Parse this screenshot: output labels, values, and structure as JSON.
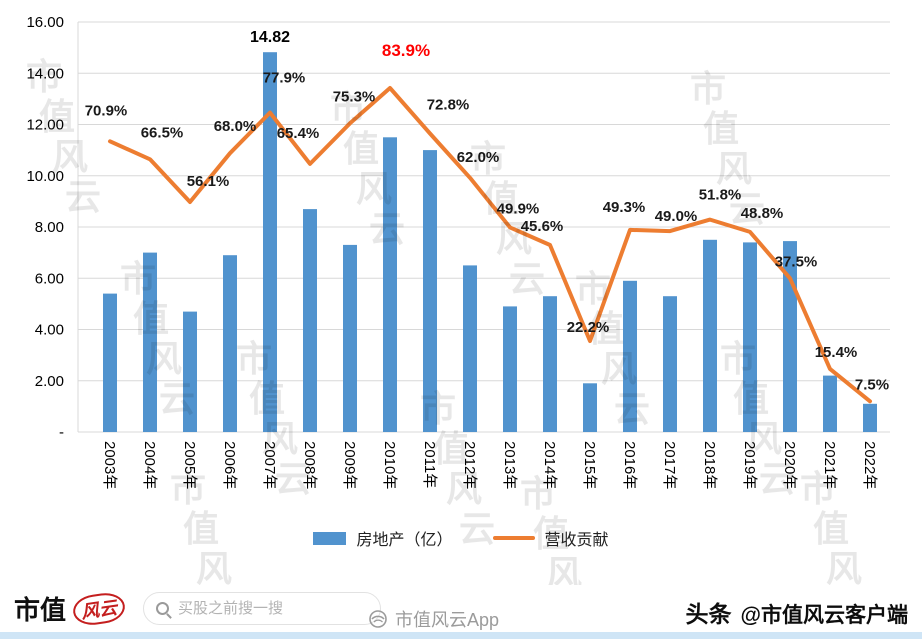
{
  "chart_data": {
    "type": "combo",
    "categories": [
      "2003年",
      "2004年",
      "2005年",
      "2006年",
      "2007年",
      "2008年",
      "2009年",
      "2010年",
      "2011年",
      "2012年",
      "2013年",
      "2014年",
      "2015年",
      "2016年",
      "2017年",
      "2018年",
      "2019年",
      "2020年",
      "2021年",
      "2022年"
    ],
    "series": [
      {
        "name": "房地产（亿）",
        "type": "bar",
        "color": "#5193CE",
        "values": [
          5.4,
          7.0,
          4.7,
          6.9,
          14.82,
          8.7,
          7.3,
          11.5,
          11.0,
          6.5,
          4.9,
          5.3,
          1.9,
          5.9,
          5.3,
          7.5,
          7.4,
          7.45,
          2.2,
          1.1
        ]
      },
      {
        "name": "营收贡献",
        "type": "line",
        "color": "#ED7D31",
        "unit": "%",
        "values": [
          70.9,
          66.5,
          56.1,
          68.0,
          77.9,
          65.4,
          75.3,
          83.9,
          72.8,
          62.0,
          49.9,
          45.6,
          22.2,
          49.3,
          49.0,
          51.8,
          48.8,
          37.5,
          15.4,
          7.5
        ]
      }
    ],
    "y_ticks": [
      "16.00",
      "14.00",
      "12.00",
      "10.00",
      "8.00",
      "6.00",
      "4.00",
      "2.00",
      "-"
    ],
    "y_max": 16,
    "line_axis_max": 100,
    "grid": true,
    "legend_position": "bottom",
    "annotations": {
      "bar_value_label": {
        "index": 4,
        "text": "14.82"
      },
      "line_max_highlight": {
        "index": 7,
        "text": "83.9%",
        "color": "#FF0000"
      }
    },
    "label_offsets": {
      "0": [
        -4,
        -26
      ],
      "1": [
        12,
        -22
      ],
      "2": [
        18,
        -16
      ],
      "3": [
        5,
        -22
      ],
      "4": [
        14,
        -30
      ],
      "5": [
        -12,
        -26
      ],
      "6": [
        4,
        -22
      ],
      "7": [
        16,
        -32
      ],
      "8": [
        18,
        -24
      ],
      "9": [
        8,
        -16
      ],
      "10": [
        8,
        -14
      ],
      "11": [
        -8,
        -14
      ],
      "12": [
        -2,
        -9
      ],
      "13": [
        -6,
        -18
      ],
      "14": [
        6,
        -10
      ],
      "15": [
        10,
        -20
      ],
      "16": [
        12,
        -14
      ],
      "17": [
        6,
        -12
      ],
      "18": [
        6,
        -12
      ],
      "19": [
        2,
        -12
      ]
    }
  },
  "watermark": {
    "diagonal_text": "市值风云",
    "bottom_text": "市值风云App"
  },
  "footer": {
    "logo": {
      "part1": "市值",
      "part2": "风云"
    },
    "search": {
      "placeholder": "买股之前搜一搜"
    },
    "byline": {
      "prefix": "头条",
      "handle": "@市值风云客户端"
    }
  }
}
